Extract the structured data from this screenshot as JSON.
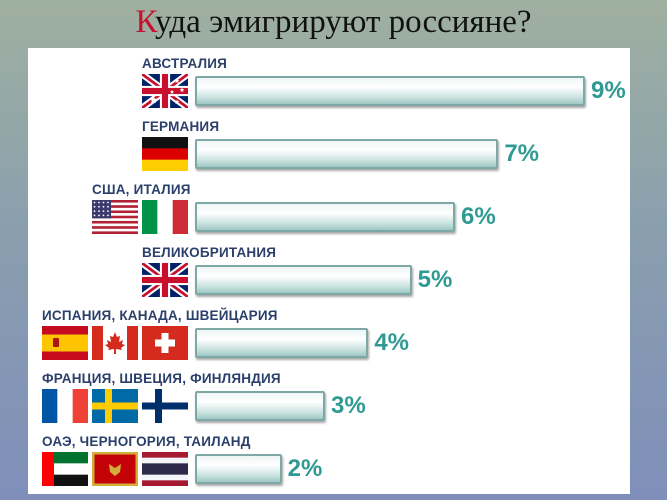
{
  "title": {
    "first": "К",
    "rest": "уда эмигрируют россияне?"
  },
  "chart_data": {
    "type": "bar",
    "orientation": "horizontal",
    "categories": [
      "АВСТРАЛИЯ",
      "ГЕРМАНИЯ",
      "США, ИТАЛИЯ",
      "ВЕЛИКОБРИТАНИЯ",
      "ИСПАНИЯ, КАНАДА, ШВЕЙЦАРИЯ",
      "ФРАНЦИЯ, ШВЕЦИЯ, ФИНЛЯНДИЯ",
      "ОАЭ, ЧЕРНОГОРИЯ, ТАИЛАНД"
    ],
    "values": [
      9,
      7,
      6,
      5,
      4,
      3,
      2
    ],
    "value_labels": [
      "9%",
      "7%",
      "6%",
      "5%",
      "4%",
      "3%",
      "2%"
    ],
    "flags": [
      [
        "australia-flag-icon"
      ],
      [
        "germany-flag-icon"
      ],
      [
        "usa-flag-icon",
        "italy-flag-icon"
      ],
      [
        "uk-flag-icon"
      ],
      [
        "spain-flag-icon",
        "canada-flag-icon",
        "switzerland-flag-icon"
      ],
      [
        "france-flag-icon",
        "sweden-flag-icon",
        "finland-flag-icon"
      ],
      [
        "uae-flag-icon",
        "montenegro-flag-icon",
        "thailand-flag-icon"
      ]
    ],
    "bar_color": "#c9e2df",
    "value_color": "#2f9a93",
    "label_color": "#2b3f6b"
  }
}
